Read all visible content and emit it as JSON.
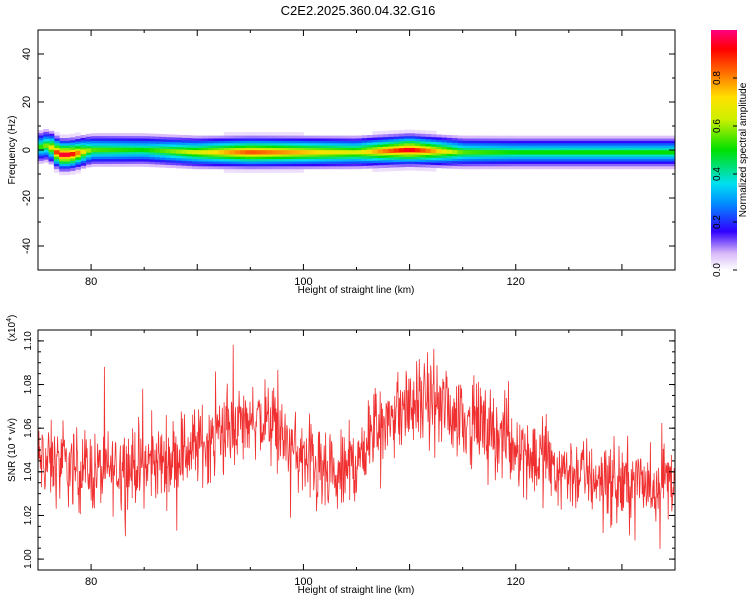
{
  "title": "C2E2.2025.360.04.32.G16",
  "chart_data": [
    {
      "type": "heatmap",
      "xlabel": "Height of straight line (km)",
      "ylabel": "Frequency (Hz)",
      "xlim": [
        75,
        135
      ],
      "ylim": [
        -50,
        50
      ],
      "xticks": [
        80,
        100,
        120
      ],
      "yticks": [
        40,
        20,
        0,
        -20,
        -40
      ],
      "colorbar": {
        "label": "Normalized spectral amplitude",
        "range": [
          0,
          1
        ],
        "ticks": [
          "0.0",
          "0.2",
          "0.4",
          "0.6",
          "0.8"
        ],
        "colormap": "rainbow"
      },
      "ridge": {
        "x": [
          75,
          76,
          77,
          78,
          80,
          85,
          90,
          95,
          100,
          105,
          110,
          115,
          120,
          125,
          130,
          135
        ],
        "freq": [
          1,
          2,
          -2,
          -2,
          0,
          0,
          -1,
          -1,
          -1,
          -1,
          0,
          -1,
          -1,
          -1,
          -1,
          -1
        ],
        "peak_amplitude": [
          0.5,
          0.6,
          0.95,
          0.95,
          0.55,
          0.5,
          0.65,
          0.85,
          0.75,
          0.65,
          0.95,
          0.55,
          0.5,
          0.5,
          0.5,
          0.5
        ]
      }
    },
    {
      "type": "line",
      "xlabel": "Height of straight line (km)",
      "ylabel": "SNR (10 * v/v)",
      "y_multiplier": "(x10^4)",
      "xlim": [
        75,
        135
      ],
      "ylim": [
        0.995,
        1.105
      ],
      "xticks": [
        80,
        100,
        120
      ],
      "yticks": [
        "1.00",
        "1.02",
        "1.04",
        "1.06",
        "1.08",
        "1.10"
      ],
      "series": [
        {
          "color": "#f03030",
          "x": [
            75,
            78,
            81,
            84,
            87,
            90,
            93,
            95,
            97,
            99,
            101,
            103,
            105,
            107,
            109,
            111,
            113,
            115,
            117,
            119,
            121,
            123,
            125,
            127,
            129,
            131,
            133,
            135
          ],
          "y": [
            1.045,
            1.042,
            1.04,
            1.043,
            1.045,
            1.052,
            1.058,
            1.065,
            1.062,
            1.05,
            1.04,
            1.035,
            1.045,
            1.06,
            1.068,
            1.072,
            1.07,
            1.065,
            1.06,
            1.055,
            1.05,
            1.045,
            1.04,
            1.038,
            1.035,
            1.035,
            1.035,
            1.038
          ]
        }
      ]
    }
  ]
}
